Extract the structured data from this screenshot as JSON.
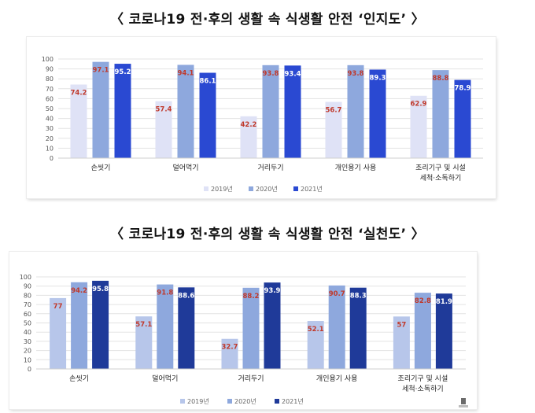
{
  "titles": {
    "awareness": "〈 코로나19 전·후의 생활 속 식생활 안전 ‘인지도’ 〉",
    "practice": "〈 코로나19 전·후의 생활 속 식생활 안전 ‘실천도’ 〉"
  },
  "colors": {
    "y2019": "#dfe2f6",
    "y2020": "#8ea8dd",
    "y2021": "#2a49d2",
    "y2019_practice": "#b7c6ea",
    "y2020_practice": "#8ea8dd",
    "y2021_practice": "#1f3a99",
    "value_label": "#c0392b"
  },
  "chart_data": [
    {
      "type": "bar",
      "title": "〈 코로나19 전·후의 생활 속 식생활 안전 ‘인지도’ 〉",
      "categories": [
        "손씻기",
        "덜어먹기",
        "거리두기",
        "개인용기 사용",
        "조리기구 및 시설|세척·소독하기"
      ],
      "series": [
        {
          "name": "2019년",
          "values": [
            74.2,
            57.4,
            42.2,
            56.7,
            62.9
          ]
        },
        {
          "name": "2020년",
          "values": [
            97.1,
            94.1,
            93.8,
            93.8,
            88.8
          ]
        },
        {
          "name": "2021년",
          "values": [
            95.2,
            86.1,
            93.4,
            89.3,
            78.9
          ]
        }
      ],
      "yticks": [
        0,
        10,
        20,
        30,
        40,
        50,
        60,
        70,
        80,
        90,
        100
      ],
      "ylim": [
        0,
        100
      ],
      "grid": true,
      "legend": "bottom"
    },
    {
      "type": "bar",
      "title": "〈 코로나19 전·후의 생활 속 식생활 안전 ‘실천도’ 〉",
      "categories": [
        "손씻기",
        "덜어먹기",
        "거리두기",
        "개인용기 사용",
        "조리기구 및 시설|세척·소독하기"
      ],
      "series": [
        {
          "name": "2019년",
          "values": [
            77,
            57.1,
            32.7,
            52.1,
            57
          ]
        },
        {
          "name": "2020년",
          "values": [
            94.2,
            91.8,
            88.2,
            90.7,
            82.8
          ]
        },
        {
          "name": "2021년",
          "values": [
            95.8,
            88.6,
            93.9,
            88.3,
            81.9
          ]
        }
      ],
      "yticks": [
        0,
        10,
        20,
        30,
        40,
        50,
        60,
        70,
        80,
        90,
        100
      ],
      "ylim": [
        0,
        100
      ],
      "grid": true,
      "legend": "bottom"
    }
  ]
}
